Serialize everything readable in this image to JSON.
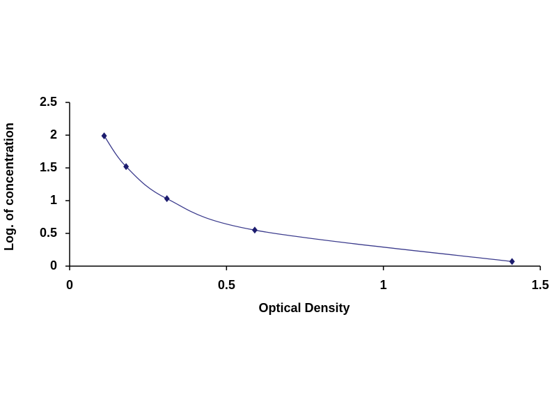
{
  "chart_data": {
    "type": "scatter",
    "xlabel": "Optical Density",
    "ylabel": "Log. of concentration",
    "x": [
      0.11,
      0.18,
      0.31,
      0.59,
      1.41
    ],
    "values": [
      1.99,
      1.52,
      1.03,
      0.55,
      0.07
    ],
    "color": "#1c1c6e",
    "line_color": "#3a3a8c",
    "smooth": true,
    "xlim": [
      0,
      1.5
    ],
    "xticks": [
      0,
      0.5,
      1,
      1.5
    ],
    "ylim": [
      0,
      2.5
    ],
    "yticks": [
      0,
      0.5,
      1,
      1.5,
      2,
      2.5
    ]
  }
}
